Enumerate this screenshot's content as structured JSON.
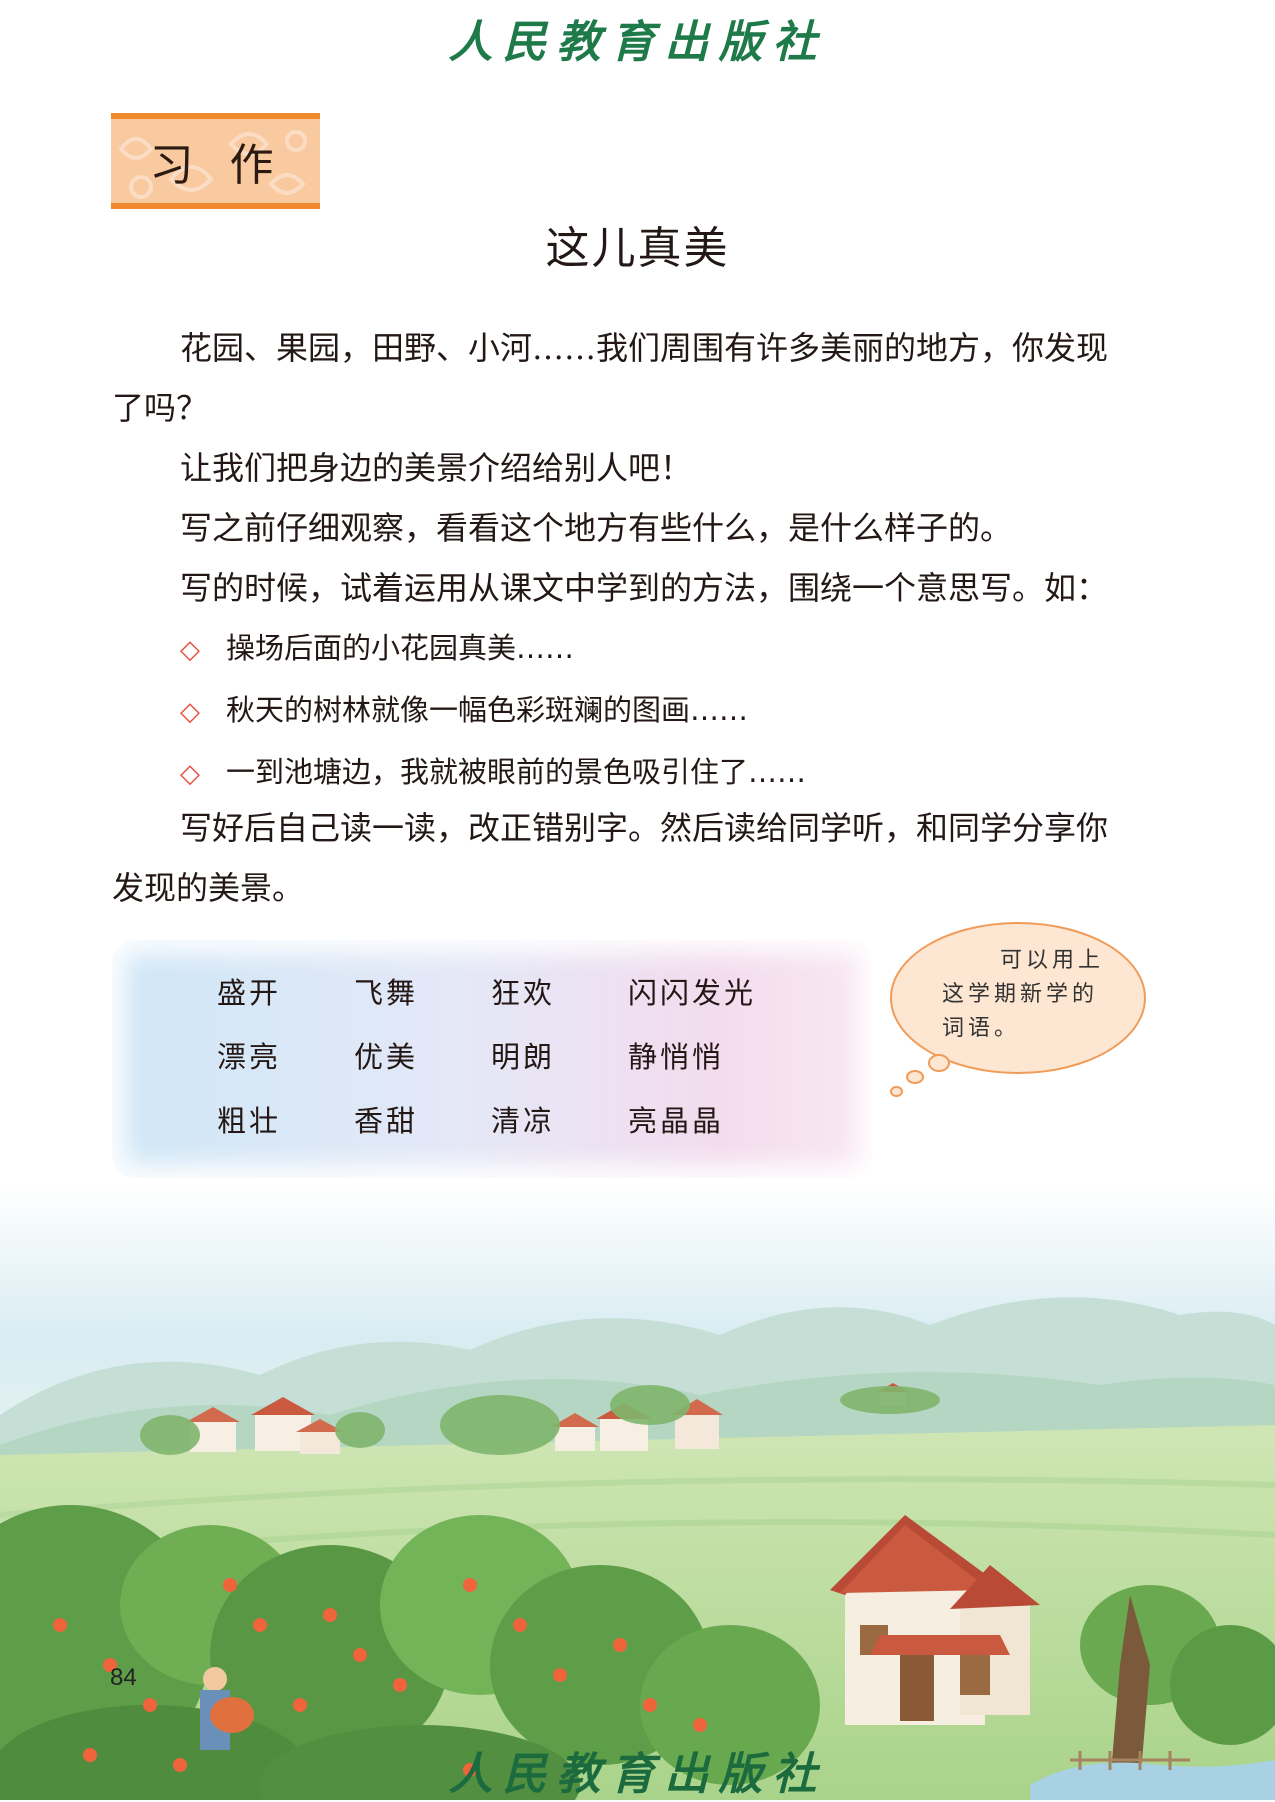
{
  "publisher": "人民教育出版社",
  "section_tag": "习作",
  "title": "这儿真美",
  "paragraphs": {
    "p1": "花园、果园，田野、小河……我们周围有许多美丽的地方，你发现了吗？",
    "p2": "让我们把身边的美景介绍给别人吧！",
    "p3": "写之前仔细观察，看看这个地方有些什么，是什么样子的。",
    "p4": "写的时候，试着运用从课文中学到的方法，围绕一个意思写。如：",
    "p5": "写好后自己读一读，改正错别字。然后读给同学听，和同学分享你发现的美景。"
  },
  "examples": [
    "操场后面的小花园真美……",
    "秋天的树林就像一幅色彩斑斓的图画……",
    "一到池塘边，我就被眼前的景色吸引住了……"
  ],
  "bullet_symbol": "◇",
  "word_bank": [
    "盛开",
    "飞舞",
    "狂欢",
    "闪闪发光",
    "漂亮",
    "优美",
    "明朗",
    "静悄悄",
    "粗壮",
    "香甜",
    "清凉",
    "亮晶晶"
  ],
  "tip_bubble": [
    "可以用上",
    "这学期新学的",
    "词语。"
  ],
  "page_number": "84",
  "colors": {
    "accent_orange": "#f08a2c",
    "logo_green": "#1f7a4a",
    "bullet_red": "#e74c3c"
  }
}
